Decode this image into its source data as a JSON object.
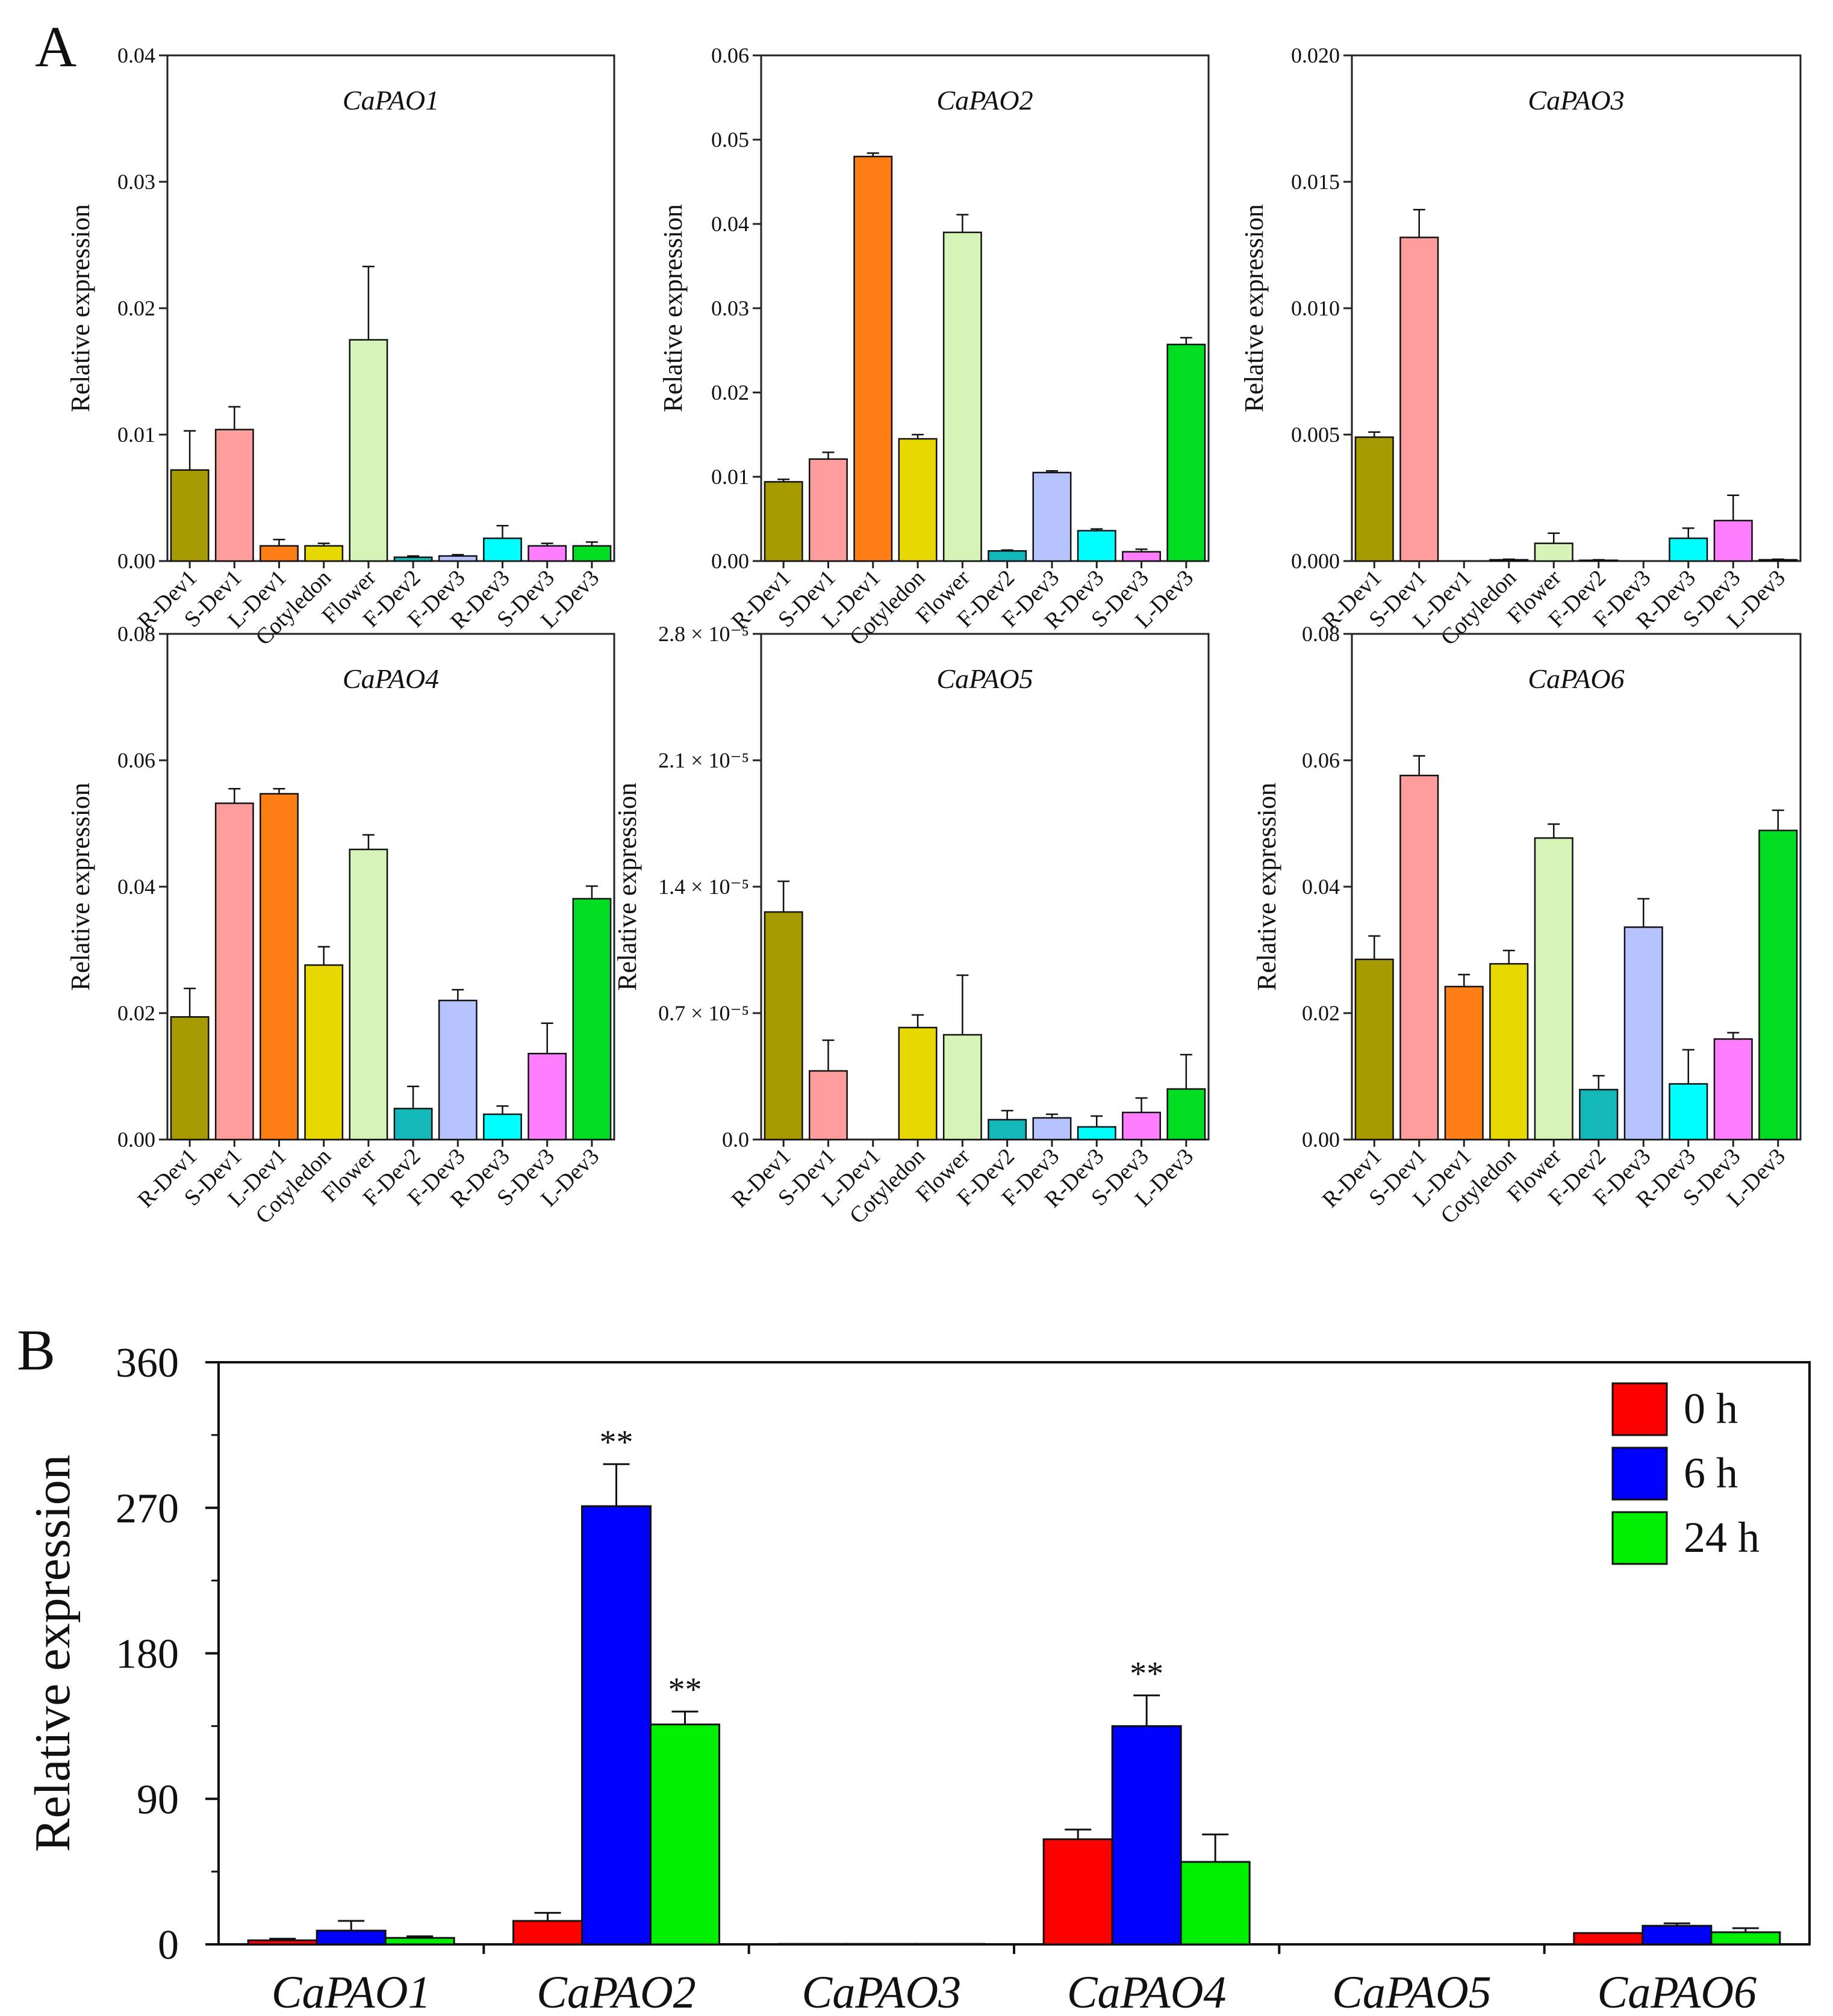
{
  "panel_labels": {
    "a": "A",
    "b": "B"
  },
  "chart_data": [
    {
      "type": "bar",
      "title": "CaPAO1",
      "ylabel": "Relative expression",
      "ylim": [
        0,
        0.04
      ],
      "yticks": [
        "0.00",
        "0.01",
        "0.02",
        "0.03",
        "0.04"
      ],
      "categories": [
        "R-Dev1",
        "S-Dev1",
        "L-Dev1",
        "Cotyledon",
        "Flower",
        "F-Dev2",
        "F-Dev3",
        "R-Dev3",
        "S-Dev3",
        "L-Dev3"
      ],
      "values": [
        0.0072,
        0.0104,
        0.0012,
        0.0012,
        0.0175,
        0.0003,
        0.0004,
        0.0018,
        0.0012,
        0.0012
      ],
      "errors": [
        0.0031,
        0.0018,
        0.0005,
        0.0002,
        0.0058,
        0.0001,
        0.0001,
        0.001,
        0.0002,
        0.0003
      ]
    },
    {
      "type": "bar",
      "title": "CaPAO2",
      "ylabel": "Relative expression",
      "ylim": [
        0,
        0.06
      ],
      "yticks": [
        "0.00",
        "0.01",
        "0.02",
        "0.03",
        "0.04",
        "0.05",
        "0.06"
      ],
      "categories": [
        "R-Dev1",
        "S-Dev1",
        "L-Dev1",
        "Cotyledon",
        "Flower",
        "F-Dev2",
        "F-Dev3",
        "R-Dev3",
        "S-Dev3",
        "L-Dev3"
      ],
      "values": [
        0.0094,
        0.0121,
        0.048,
        0.0145,
        0.039,
        0.0012,
        0.0105,
        0.0036,
        0.0011,
        0.0257
      ],
      "errors": [
        0.0003,
        0.0008,
        0.0004,
        0.0005,
        0.0021,
        0.0001,
        0.0002,
        0.0002,
        0.0003,
        0.0008
      ]
    },
    {
      "type": "bar",
      "title": "CaPAO3",
      "ylabel": "Relative expression",
      "ylim": [
        0,
        0.02
      ],
      "yticks": [
        "0.000",
        "0.005",
        "0.010",
        "0.015",
        "0.020"
      ],
      "categories": [
        "R-Dev1",
        "S-Dev1",
        "L-Dev1",
        "Cotyledon",
        "Flower",
        "F-Dev2",
        "F-Dev3",
        "R-Dev3",
        "S-Dev3",
        "L-Dev3"
      ],
      "values": [
        0.0049,
        0.0128,
        0.0,
        5e-05,
        0.0007,
        3e-05,
        0.0,
        0.0009,
        0.0016,
        5e-05
      ],
      "errors": [
        0.0002,
        0.0011,
        0.0,
        2e-05,
        0.0004,
        2e-05,
        0.0,
        0.0004,
        0.001,
        2e-05
      ]
    },
    {
      "type": "bar",
      "title": "CaPAO4",
      "ylabel": "Relative expression",
      "ylim": [
        0,
        0.08
      ],
      "yticks": [
        "0.00",
        "0.02",
        "0.04",
        "0.06",
        "0.08"
      ],
      "categories": [
        "R-Dev1",
        "S-Dev1",
        "L-Dev1",
        "Cotyledon",
        "Flower",
        "F-Dev2",
        "F-Dev3",
        "R-Dev3",
        "S-Dev3",
        "L-Dev3"
      ],
      "values": [
        0.0194,
        0.0532,
        0.0547,
        0.0276,
        0.0459,
        0.0049,
        0.022,
        0.004,
        0.0136,
        0.0381
      ],
      "errors": [
        0.0045,
        0.0023,
        0.0008,
        0.0029,
        0.0023,
        0.0035,
        0.0017,
        0.0013,
        0.0048,
        0.002
      ]
    },
    {
      "type": "bar",
      "title": "CaPAO5",
      "ylabel": "Relative expression",
      "ylim": [
        0,
        2.8e-05
      ],
      "yticks": [
        "0.0",
        "0.7 × 10⁻⁵",
        "1.4 × 10⁻⁵",
        "2.1 × 10⁻⁵",
        "2.8 × 10⁻⁵"
      ],
      "categories": [
        "R-Dev1",
        "S-Dev1",
        "L-Dev1",
        "Cotyledon",
        "Flower",
        "F-Dev2",
        "F-Dev3",
        "R-Dev3",
        "S-Dev3",
        "L-Dev3"
      ],
      "values": [
        1.26e-05,
        3.8e-06,
        0,
        6.2e-06,
        5.8e-06,
        1.1e-06,
        1.2e-06,
        7e-07,
        1.5e-06,
        2.8e-06
      ],
      "errors": [
        1.7e-06,
        1.7e-06,
        0,
        7e-07,
        3.3e-06,
        5e-07,
        2e-07,
        6e-07,
        8e-07,
        1.9e-06
      ]
    },
    {
      "type": "bar",
      "title": "CaPAO6",
      "ylabel": "Relative expression",
      "ylim": [
        0,
        0.08
      ],
      "yticks": [
        "0.00",
        "0.02",
        "0.04",
        "0.06",
        "0.08"
      ],
      "categories": [
        "R-Dev1",
        "S-Dev1",
        "L-Dev1",
        "Cotyledon",
        "Flower",
        "F-Dev2",
        "F-Dev3",
        "R-Dev3",
        "S-Dev3",
        "L-Dev3"
      ],
      "values": [
        0.0285,
        0.0576,
        0.0242,
        0.0278,
        0.0477,
        0.0079,
        0.0336,
        0.0088,
        0.0159,
        0.0489
      ],
      "errors": [
        0.0037,
        0.0031,
        0.0019,
        0.0021,
        0.0022,
        0.0022,
        0.0045,
        0.0054,
        0.001,
        0.0032
      ]
    },
    {
      "type": "bar",
      "ylabel": "Relative expression",
      "ylim": [
        0,
        360
      ],
      "yticks": [
        "0",
        "90",
        "180",
        "270",
        "360"
      ],
      "categories": [
        "CaPAO1",
        "CaPAO2",
        "CaPAO3",
        "CaPAO4",
        "CaPAO5",
        "CaPAO6"
      ],
      "legend_position": "top-right",
      "series": [
        {
          "name": "0 h",
          "color": "#ff0000",
          "values": [
            2.5,
            14.5,
            0.3,
            65,
            0.1,
            7
          ],
          "errors": [
            1,
            5,
            0,
            6,
            0,
            0
          ],
          "sig": [
            "",
            "",
            "",
            "",
            "",
            ""
          ]
        },
        {
          "name": "6 h",
          "color": "#0000ff",
          "values": [
            8.5,
            271,
            0.3,
            135,
            0.1,
            11.5
          ],
          "errors": [
            6,
            26,
            0,
            19,
            0,
            1.5
          ],
          "sig": [
            "",
            "**",
            "",
            "**",
            "",
            ""
          ]
        },
        {
          "name": "24 h",
          "color": "#00ee00",
          "values": [
            4,
            136,
            0.3,
            51,
            0.1,
            7.5
          ],
          "errors": [
            1,
            8,
            0,
            17,
            0,
            2.5
          ],
          "sig": [
            "",
            "**",
            "",
            "",
            "",
            ""
          ]
        }
      ]
    }
  ],
  "tissue_colors": [
    "#a59b00",
    "#ff9d9d",
    "#ff7f16",
    "#e6d800",
    "#d6f3b8",
    "#13b9b8",
    "#b7c3ff",
    "#00ffff",
    "#ff7dff",
    "#00dd22"
  ]
}
